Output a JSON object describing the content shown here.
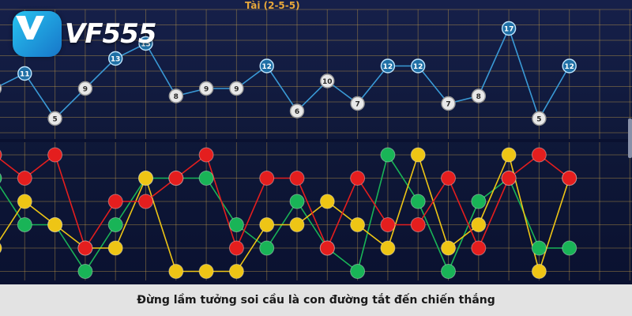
{
  "brand": {
    "name": "VF555"
  },
  "board": {
    "title": "Tài (2-5-5)"
  },
  "caption": "Đừng lầm tưởng soi cầu là con đường tắt đến chiến thắng",
  "colors": {
    "red": "#e41e1e",
    "green": "#19b457",
    "yellow": "#eec515",
    "blue_node": "#1f6fa5",
    "line_blue": "#3a9ad6"
  },
  "sum_chart": {
    "series": [
      {
        "label": "9",
        "kind": "gray"
      },
      {
        "label": "11",
        "kind": "blue"
      },
      {
        "label": "5",
        "kind": "gray"
      },
      {
        "label": "9",
        "kind": "gray"
      },
      {
        "label": "13",
        "kind": "blue"
      },
      {
        "label": "15",
        "kind": "blue"
      },
      {
        "label": "8",
        "kind": "gray"
      },
      {
        "label": "9",
        "kind": "gray"
      },
      {
        "label": "9",
        "kind": "gray"
      },
      {
        "label": "12",
        "kind": "blue"
      },
      {
        "label": "6",
        "kind": "gray"
      },
      {
        "label": "10",
        "kind": "gray"
      },
      {
        "label": "7",
        "kind": "gray"
      },
      {
        "label": "12",
        "kind": "blue"
      },
      {
        "label": "12",
        "kind": "blue"
      },
      {
        "label": "7",
        "kind": "gray"
      },
      {
        "label": "8",
        "kind": "gray"
      },
      {
        "label": "17",
        "kind": "blue"
      },
      {
        "label": "5",
        "kind": "gray"
      },
      {
        "label": "12",
        "kind": "blue"
      }
    ]
  },
  "dot_chart": {
    "levels": 5,
    "red": [
      0,
      1,
      0,
      4,
      2,
      2,
      1,
      0,
      4,
      1,
      1,
      4,
      1,
      3,
      3,
      1,
      4,
      1,
      0,
      1
    ],
    "green": [
      1,
      3,
      3,
      5,
      3,
      1,
      1,
      1,
      3,
      4,
      2,
      4,
      5,
      0,
      2,
      5,
      2,
      1,
      4,
      4
    ],
    "yellow": [
      4,
      2,
      3,
      4,
      4,
      1,
      5,
      5,
      5,
      3,
      3,
      2,
      3,
      4,
      0,
      4,
      3,
      0,
      5,
      1
    ]
  }
}
